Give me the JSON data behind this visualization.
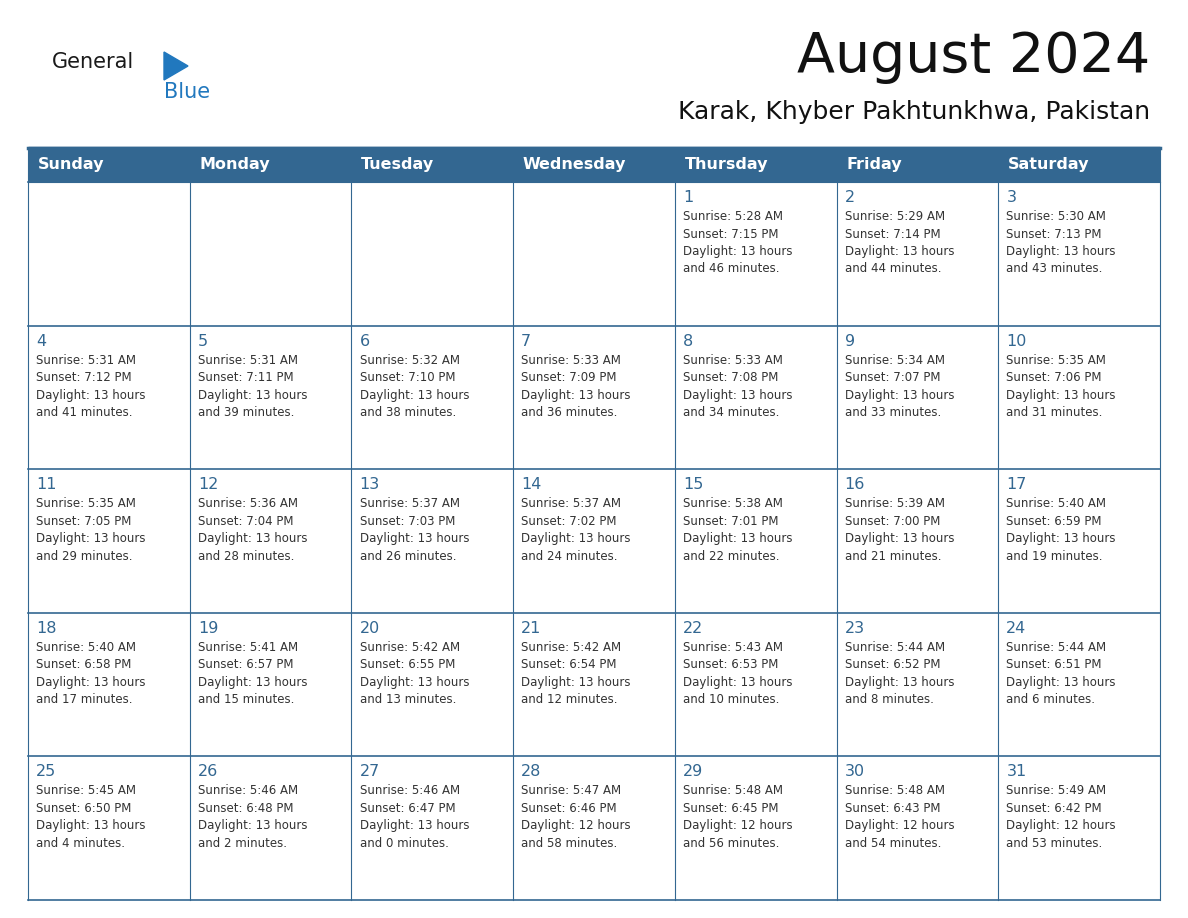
{
  "title": "August 2024",
  "subtitle": "Karak, Khyber Pakhtunkhwa, Pakistan",
  "header_bg": "#336791",
  "header_text_color": "#FFFFFF",
  "day_headers": [
    "Sunday",
    "Monday",
    "Tuesday",
    "Wednesday",
    "Thursday",
    "Friday",
    "Saturday"
  ],
  "title_color": "#111111",
  "subtitle_color": "#111111",
  "day_num_color": "#336791",
  "cell_text_color": "#333333",
  "grid_color": "#336791",
  "logo_general_color": "#1a1a1a",
  "logo_blue_color": "#2178BE",
  "logo_triangle_color": "#2178BE",
  "calendar_data": [
    [
      "",
      "",
      "",
      "",
      "1\nSunrise: 5:28 AM\nSunset: 7:15 PM\nDaylight: 13 hours\nand 46 minutes.",
      "2\nSunrise: 5:29 AM\nSunset: 7:14 PM\nDaylight: 13 hours\nand 44 minutes.",
      "3\nSunrise: 5:30 AM\nSunset: 7:13 PM\nDaylight: 13 hours\nand 43 minutes."
    ],
    [
      "4\nSunrise: 5:31 AM\nSunset: 7:12 PM\nDaylight: 13 hours\nand 41 minutes.",
      "5\nSunrise: 5:31 AM\nSunset: 7:11 PM\nDaylight: 13 hours\nand 39 minutes.",
      "6\nSunrise: 5:32 AM\nSunset: 7:10 PM\nDaylight: 13 hours\nand 38 minutes.",
      "7\nSunrise: 5:33 AM\nSunset: 7:09 PM\nDaylight: 13 hours\nand 36 minutes.",
      "8\nSunrise: 5:33 AM\nSunset: 7:08 PM\nDaylight: 13 hours\nand 34 minutes.",
      "9\nSunrise: 5:34 AM\nSunset: 7:07 PM\nDaylight: 13 hours\nand 33 minutes.",
      "10\nSunrise: 5:35 AM\nSunset: 7:06 PM\nDaylight: 13 hours\nand 31 minutes."
    ],
    [
      "11\nSunrise: 5:35 AM\nSunset: 7:05 PM\nDaylight: 13 hours\nand 29 minutes.",
      "12\nSunrise: 5:36 AM\nSunset: 7:04 PM\nDaylight: 13 hours\nand 28 minutes.",
      "13\nSunrise: 5:37 AM\nSunset: 7:03 PM\nDaylight: 13 hours\nand 26 minutes.",
      "14\nSunrise: 5:37 AM\nSunset: 7:02 PM\nDaylight: 13 hours\nand 24 minutes.",
      "15\nSunrise: 5:38 AM\nSunset: 7:01 PM\nDaylight: 13 hours\nand 22 minutes.",
      "16\nSunrise: 5:39 AM\nSunset: 7:00 PM\nDaylight: 13 hours\nand 21 minutes.",
      "17\nSunrise: 5:40 AM\nSunset: 6:59 PM\nDaylight: 13 hours\nand 19 minutes."
    ],
    [
      "18\nSunrise: 5:40 AM\nSunset: 6:58 PM\nDaylight: 13 hours\nand 17 minutes.",
      "19\nSunrise: 5:41 AM\nSunset: 6:57 PM\nDaylight: 13 hours\nand 15 minutes.",
      "20\nSunrise: 5:42 AM\nSunset: 6:55 PM\nDaylight: 13 hours\nand 13 minutes.",
      "21\nSunrise: 5:42 AM\nSunset: 6:54 PM\nDaylight: 13 hours\nand 12 minutes.",
      "22\nSunrise: 5:43 AM\nSunset: 6:53 PM\nDaylight: 13 hours\nand 10 minutes.",
      "23\nSunrise: 5:44 AM\nSunset: 6:52 PM\nDaylight: 13 hours\nand 8 minutes.",
      "24\nSunrise: 5:44 AM\nSunset: 6:51 PM\nDaylight: 13 hours\nand 6 minutes."
    ],
    [
      "25\nSunrise: 5:45 AM\nSunset: 6:50 PM\nDaylight: 13 hours\nand 4 minutes.",
      "26\nSunrise: 5:46 AM\nSunset: 6:48 PM\nDaylight: 13 hours\nand 2 minutes.",
      "27\nSunrise: 5:46 AM\nSunset: 6:47 PM\nDaylight: 13 hours\nand 0 minutes.",
      "28\nSunrise: 5:47 AM\nSunset: 6:46 PM\nDaylight: 12 hours\nand 58 minutes.",
      "29\nSunrise: 5:48 AM\nSunset: 6:45 PM\nDaylight: 12 hours\nand 56 minutes.",
      "30\nSunrise: 5:48 AM\nSunset: 6:43 PM\nDaylight: 12 hours\nand 54 minutes.",
      "31\nSunrise: 5:49 AM\nSunset: 6:42 PM\nDaylight: 12 hours\nand 53 minutes."
    ]
  ]
}
